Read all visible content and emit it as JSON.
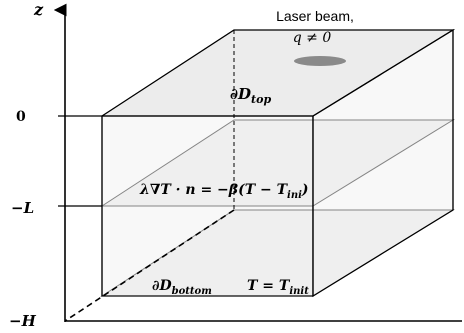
{
  "axis": {
    "z_label": "z",
    "tick_zero": "0",
    "tick_minus_L": "−L",
    "tick_minus_H": "−H"
  },
  "annotations": {
    "laser_line1": "Laser beam,",
    "laser_line2": "q ≠ 0",
    "top_boundary": "∂D",
    "top_boundary_sub": "top",
    "interface_condition": "λ∇T · n = −β(T − T",
    "interface_condition_sub": "ini",
    "interface_condition_end": ")",
    "bottom_boundary": "∂D",
    "bottom_boundary_sub": "bottom",
    "bottom_condition": "T = T",
    "bottom_condition_sub": "init"
  },
  "colors": {
    "face_fill": "#ececec",
    "laser_spot": "#8a8a8a",
    "line": "#000000"
  }
}
